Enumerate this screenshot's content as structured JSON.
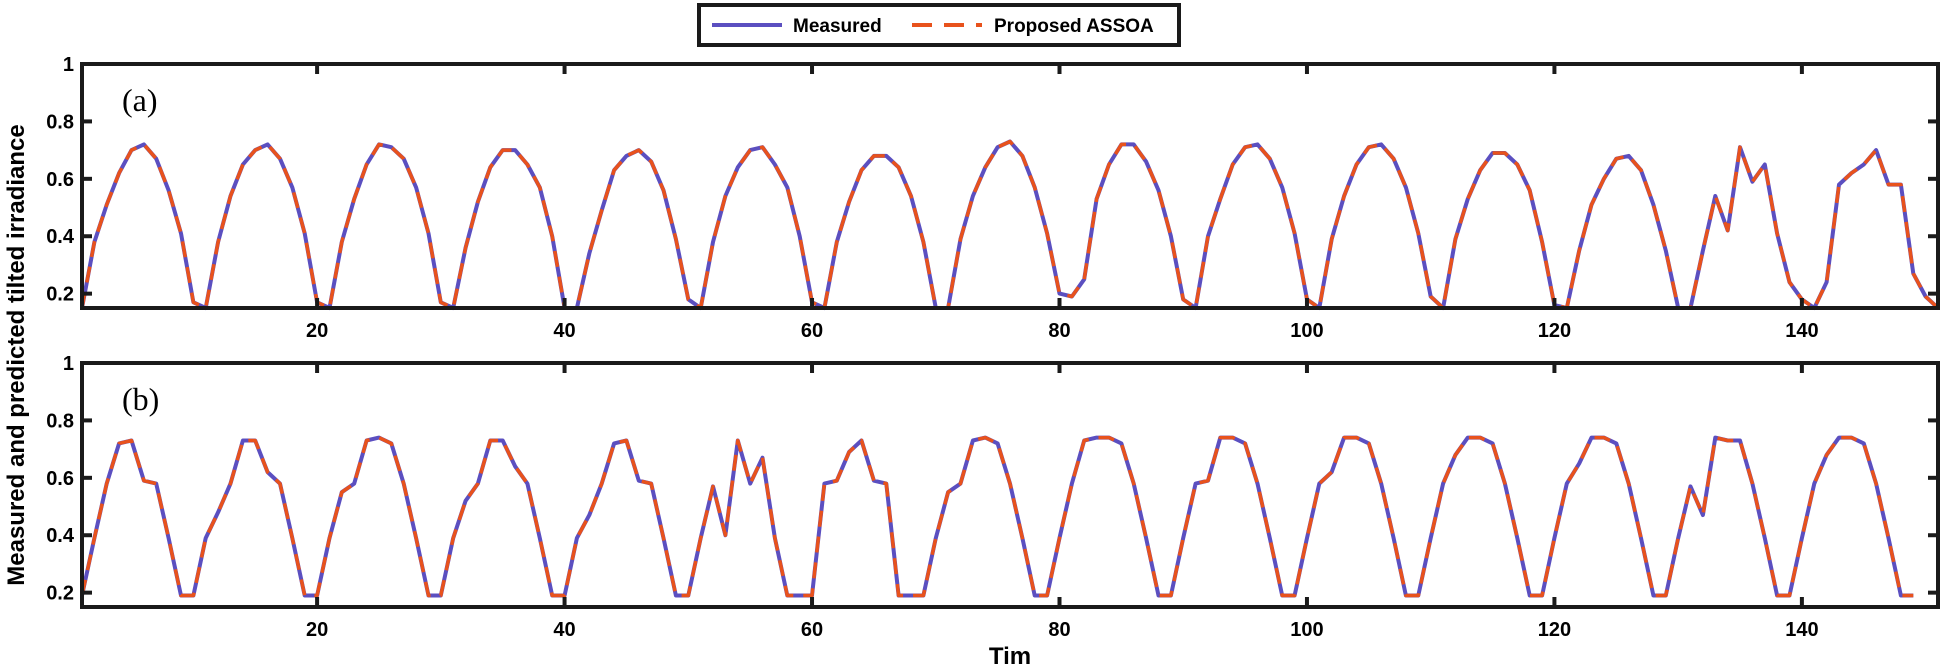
{
  "chart_data": {
    "type": "line",
    "colors": {
      "measured": "#5B4FC0",
      "predicted": "#E8521C"
    },
    "legend": {
      "placement": "top-center",
      "items": [
        {
          "key": "measured",
          "label": "Measured",
          "style": "solid"
        },
        {
          "key": "predicted",
          "label": "Proposed ASSOA",
          "style": "dashed"
        }
      ]
    },
    "xlabel": "Tim",
    "ylabel": "Measured and predicted tilted irradiance",
    "panels": [
      {
        "label": "(a)",
        "xlim": [
          1,
          151
        ],
        "ylim": [
          0.15,
          1
        ],
        "xticks": [
          20,
          40,
          60,
          80,
          100,
          120,
          140
        ],
        "yticks": [
          0.2,
          0.4,
          0.6,
          0.8,
          1
        ],
        "ytick_labels": [
          "0.2",
          "0.4",
          "0.6",
          "0.8",
          "1"
        ],
        "x": [
          1,
          2,
          3,
          4,
          5,
          6,
          7,
          8,
          9,
          10,
          11,
          12,
          13,
          14,
          15,
          16,
          17,
          18,
          19,
          20,
          21,
          22,
          23,
          24,
          25,
          26,
          27,
          28,
          29,
          30,
          31,
          32,
          33,
          34,
          35,
          36,
          37,
          38,
          39,
          40,
          41,
          42,
          43,
          44,
          45,
          46,
          47,
          48,
          49,
          50,
          51,
          52,
          53,
          54,
          55,
          56,
          57,
          58,
          59,
          60,
          61,
          62,
          63,
          64,
          65,
          66,
          67,
          68,
          69,
          70,
          71,
          72,
          73,
          74,
          75,
          76,
          77,
          78,
          79,
          80,
          81,
          82,
          83,
          84,
          85,
          86,
          87,
          88,
          89,
          90,
          91,
          92,
          93,
          94,
          95,
          96,
          97,
          98,
          99,
          100,
          101,
          102,
          103,
          104,
          105,
          106,
          107,
          108,
          109,
          110,
          111,
          112,
          113,
          114,
          115,
          116,
          117,
          118,
          119,
          120,
          121,
          122,
          123,
          124,
          125,
          126,
          127,
          128,
          129,
          130,
          131,
          132,
          133,
          134,
          135,
          136,
          137,
          138,
          139,
          140,
          141,
          142,
          143,
          144,
          145,
          146,
          147,
          148,
          149,
          150,
          151
        ],
        "series": [
          {
            "name": "Measured",
            "values": [
              0.15,
              0.38,
              0.51,
              0.62,
              0.7,
              0.72,
              0.67,
              0.56,
              0.41,
              0.17,
              0.15,
              0.38,
              0.54,
              0.65,
              0.7,
              0.72,
              0.67,
              0.57,
              0.41,
              0.17,
              0.15,
              0.38,
              0.53,
              0.65,
              0.72,
              0.71,
              0.67,
              0.57,
              0.41,
              0.17,
              0.15,
              0.36,
              0.52,
              0.64,
              0.7,
              0.7,
              0.65,
              0.57,
              0.4,
              0.15,
              0.15,
              0.34,
              0.49,
              0.63,
              0.68,
              0.7,
              0.66,
              0.56,
              0.39,
              0.18,
              0.15,
              0.38,
              0.54,
              0.64,
              0.7,
              0.71,
              0.65,
              0.57,
              0.4,
              0.17,
              0.15,
              0.38,
              0.52,
              0.63,
              0.68,
              0.68,
              0.64,
              0.54,
              0.38,
              0.15,
              0.15,
              0.39,
              0.54,
              0.64,
              0.71,
              0.73,
              0.68,
              0.57,
              0.41,
              0.2,
              0.19,
              0.25,
              0.53,
              0.65,
              0.72,
              0.72,
              0.66,
              0.56,
              0.4,
              0.18,
              0.15,
              0.4,
              0.53,
              0.65,
              0.71,
              0.72,
              0.67,
              0.57,
              0.41,
              0.18,
              0.15,
              0.39,
              0.54,
              0.65,
              0.71,
              0.72,
              0.67,
              0.57,
              0.41,
              0.19,
              0.15,
              0.39,
              0.53,
              0.63,
              0.69,
              0.69,
              0.65,
              0.56,
              0.38,
              0.16,
              0.15,
              0.35,
              0.51,
              0.6,
              0.67,
              0.68,
              0.63,
              0.51,
              0.35,
              0.15,
              0.15,
              0.35,
              0.54,
              0.42,
              0.71,
              0.59,
              0.65,
              0.41,
              0.24,
              0.18,
              0.15,
              0.24,
              0.58,
              0.62,
              0.65,
              0.7,
              0.58,
              0.58,
              0.27,
              0.19,
              0.15
            ]
          },
          {
            "name": "Proposed ASSOA",
            "values": [
              0.15,
              0.38,
              0.51,
              0.62,
              0.7,
              0.72,
              0.67,
              0.56,
              0.41,
              0.17,
              0.15,
              0.38,
              0.54,
              0.65,
              0.7,
              0.72,
              0.67,
              0.57,
              0.41,
              0.17,
              0.15,
              0.38,
              0.53,
              0.65,
              0.72,
              0.71,
              0.67,
              0.57,
              0.41,
              0.17,
              0.15,
              0.36,
              0.52,
              0.64,
              0.7,
              0.7,
              0.65,
              0.57,
              0.4,
              0.15,
              0.15,
              0.34,
              0.49,
              0.63,
              0.68,
              0.7,
              0.66,
              0.56,
              0.39,
              0.18,
              0.15,
              0.38,
              0.54,
              0.64,
              0.7,
              0.71,
              0.65,
              0.57,
              0.4,
              0.17,
              0.15,
              0.38,
              0.52,
              0.63,
              0.68,
              0.68,
              0.64,
              0.54,
              0.38,
              0.15,
              0.15,
              0.39,
              0.54,
              0.64,
              0.71,
              0.73,
              0.68,
              0.57,
              0.41,
              0.2,
              0.19,
              0.25,
              0.53,
              0.65,
              0.72,
              0.72,
              0.66,
              0.56,
              0.4,
              0.18,
              0.15,
              0.4,
              0.53,
              0.65,
              0.71,
              0.72,
              0.67,
              0.57,
              0.41,
              0.18,
              0.15,
              0.39,
              0.54,
              0.65,
              0.71,
              0.72,
              0.67,
              0.57,
              0.41,
              0.19,
              0.15,
              0.39,
              0.53,
              0.63,
              0.69,
              0.69,
              0.65,
              0.56,
              0.38,
              0.16,
              0.15,
              0.35,
              0.51,
              0.6,
              0.67,
              0.68,
              0.63,
              0.51,
              0.35,
              0.15,
              0.15,
              0.35,
              0.54,
              0.42,
              0.71,
              0.59,
              0.65,
              0.41,
              0.24,
              0.18,
              0.15,
              0.24,
              0.58,
              0.62,
              0.65,
              0.7,
              0.58,
              0.58,
              0.27,
              0.19,
              0.15
            ]
          }
        ]
      },
      {
        "label": "(b)",
        "xlim": [
          1,
          151
        ],
        "ylim": [
          0.15,
          1
        ],
        "xticks": [
          20,
          40,
          60,
          80,
          100,
          120,
          140
        ],
        "yticks": [
          0.2,
          0.4,
          0.6,
          0.8,
          1
        ],
        "ytick_labels": [
          "0.2",
          "0.4",
          "0.6",
          "0.8",
          "1"
        ],
        "x": [
          1,
          2,
          3,
          4,
          5,
          6,
          7,
          8,
          9,
          10,
          11,
          12,
          13,
          14,
          15,
          16,
          17,
          18,
          19,
          20,
          21,
          22,
          23,
          24,
          25,
          26,
          27,
          28,
          29,
          30,
          31,
          32,
          33,
          34,
          35,
          36,
          37,
          38,
          39,
          40,
          41,
          42,
          43,
          44,
          45,
          46,
          47,
          48,
          49,
          50,
          51,
          52,
          53,
          54,
          55,
          56,
          57,
          58,
          59,
          60,
          61,
          62,
          63,
          64,
          65,
          66,
          67,
          68,
          69,
          70,
          71,
          72,
          73,
          74,
          75,
          76,
          77,
          78,
          79,
          80,
          81,
          82,
          83,
          84,
          85,
          86,
          87,
          88,
          89,
          90,
          91,
          92,
          93,
          94,
          95,
          96,
          97,
          98,
          99,
          100,
          101,
          102,
          103,
          104,
          105,
          106,
          107,
          108,
          109,
          110,
          111,
          112,
          113,
          114,
          115,
          116,
          117,
          118,
          119,
          120,
          121,
          122,
          123,
          124,
          125,
          126,
          127,
          128,
          129,
          130,
          131,
          132,
          133,
          134,
          135,
          136,
          137,
          138,
          139,
          140,
          141,
          142,
          143,
          144,
          145,
          146,
          147,
          148,
          149,
          150,
          151
        ],
        "series": [
          {
            "name": "Measured",
            "values": [
              0.19,
              0.39,
              0.58,
              0.72,
              0.73,
              0.59,
              0.58,
              0.39,
              0.19,
              0.19,
              0.39,
              0.48,
              0.58,
              0.73,
              0.73,
              0.62,
              0.58,
              0.39,
              0.19,
              0.19,
              0.39,
              0.55,
              0.58,
              0.73,
              0.74,
              0.72,
              0.58,
              0.39,
              0.19,
              0.19,
              0.39,
              0.52,
              0.58,
              0.73,
              0.73,
              0.64,
              0.58,
              0.39,
              0.19,
              0.19,
              0.39,
              0.47,
              0.58,
              0.72,
              0.73,
              0.59,
              0.58,
              0.39,
              0.19,
              0.19,
              0.39,
              0.57,
              0.4,
              0.73,
              0.58,
              0.67,
              0.39,
              0.19,
              0.19,
              0.19,
              0.58,
              0.59,
              0.69,
              0.73,
              0.59,
              0.58,
              0.19,
              0.19,
              0.19,
              0.39,
              0.55,
              0.58,
              0.73,
              0.74,
              0.72,
              0.58,
              0.39,
              0.19,
              0.19,
              0.39,
              0.58,
              0.73,
              0.74,
              0.74,
              0.72,
              0.58,
              0.39,
              0.19,
              0.19,
              0.39,
              0.58,
              0.59,
              0.74,
              0.74,
              0.72,
              0.58,
              0.39,
              0.19,
              0.19,
              0.39,
              0.58,
              0.62,
              0.74,
              0.74,
              0.72,
              0.58,
              0.39,
              0.19,
              0.19,
              0.39,
              0.58,
              0.68,
              0.74,
              0.74,
              0.72,
              0.58,
              0.39,
              0.19,
              0.19,
              0.39,
              0.58,
              0.65,
              0.74,
              0.74,
              0.72,
              0.58,
              0.39,
              0.19,
              0.19,
              0.39,
              0.57,
              0.47,
              0.74,
              0.73,
              0.73,
              0.58,
              0.39,
              0.19,
              0.19,
              0.39,
              0.58,
              0.68,
              0.74,
              0.74,
              0.72,
              0.58,
              0.39,
              0.19,
              0.19
            ]
          },
          {
            "name": "Proposed ASSOA",
            "values": [
              0.19,
              0.39,
              0.58,
              0.72,
              0.73,
              0.59,
              0.58,
              0.39,
              0.19,
              0.19,
              0.39,
              0.48,
              0.58,
              0.73,
              0.73,
              0.62,
              0.58,
              0.39,
              0.19,
              0.19,
              0.39,
              0.55,
              0.58,
              0.73,
              0.74,
              0.72,
              0.58,
              0.39,
              0.19,
              0.19,
              0.39,
              0.52,
              0.58,
              0.73,
              0.73,
              0.64,
              0.58,
              0.39,
              0.19,
              0.19,
              0.39,
              0.47,
              0.58,
              0.72,
              0.73,
              0.59,
              0.58,
              0.39,
              0.19,
              0.19,
              0.39,
              0.57,
              0.4,
              0.73,
              0.58,
              0.67,
              0.39,
              0.19,
              0.19,
              0.19,
              0.58,
              0.59,
              0.69,
              0.73,
              0.59,
              0.58,
              0.19,
              0.19,
              0.19,
              0.39,
              0.55,
              0.58,
              0.73,
              0.74,
              0.72,
              0.58,
              0.39,
              0.19,
              0.19,
              0.39,
              0.58,
              0.73,
              0.74,
              0.74,
              0.72,
              0.58,
              0.39,
              0.19,
              0.19,
              0.39,
              0.58,
              0.59,
              0.74,
              0.74,
              0.72,
              0.58,
              0.39,
              0.19,
              0.19,
              0.39,
              0.58,
              0.62,
              0.74,
              0.74,
              0.72,
              0.58,
              0.39,
              0.19,
              0.19,
              0.39,
              0.58,
              0.68,
              0.74,
              0.74,
              0.72,
              0.58,
              0.39,
              0.19,
              0.19,
              0.39,
              0.58,
              0.65,
              0.74,
              0.74,
              0.72,
              0.58,
              0.39,
              0.19,
              0.19,
              0.39,
              0.57,
              0.47,
              0.74,
              0.73,
              0.73,
              0.58,
              0.39,
              0.19,
              0.19,
              0.39,
              0.58,
              0.68,
              0.74,
              0.74,
              0.72,
              0.58,
              0.39,
              0.19,
              0.19
            ]
          }
        ]
      }
    ]
  }
}
